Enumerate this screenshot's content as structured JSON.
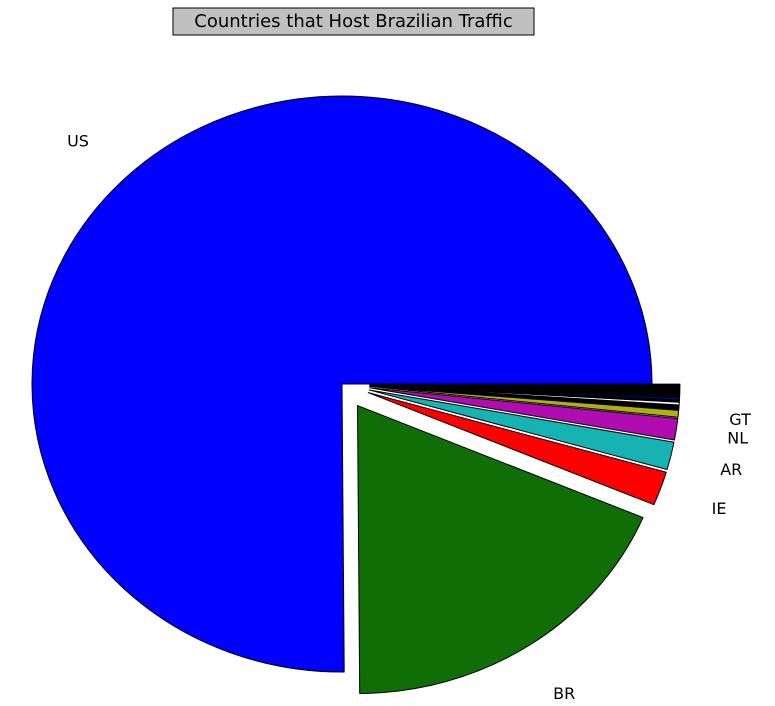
{
  "chart_data": {
    "type": "pie",
    "title": "Countries that Host Brazilian Traffic",
    "slices": [
      {
        "label": "US",
        "value": 75.0,
        "color": "#0000ff",
        "exploded": false
      },
      {
        "label": "BR",
        "value": 18.5,
        "color": "#0f6e05",
        "exploded": true
      },
      {
        "label": "IE",
        "value": 1.9,
        "color": "#ff0000",
        "exploded": true
      },
      {
        "label": "AR",
        "value": 1.55,
        "color": "#17b3b3",
        "exploded": true
      },
      {
        "label": "NL",
        "value": 1.2,
        "color": "#b10cb1",
        "exploded": true
      },
      {
        "label": "GT",
        "value": 0.38,
        "color": "#b0b00c",
        "exploded": true
      },
      {
        "label": "",
        "value": 0.25,
        "color": "#000000",
        "exploded": true
      },
      {
        "label": "",
        "value": 0.15,
        "color": "#ffffff",
        "exploded": true
      },
      {
        "label": "",
        "value": 0.12,
        "color": "#000000",
        "exploded": true
      },
      {
        "label": "",
        "value": 0.1,
        "color": "#0000ff",
        "exploded": true
      },
      {
        "label": "",
        "value": 0.2,
        "color": "#000000",
        "exploded": true
      },
      {
        "label": "",
        "value": 0.15,
        "color": "#000000",
        "exploded": true
      },
      {
        "label": "",
        "value": 0.15,
        "color": "#000000",
        "exploded": true
      },
      {
        "label": "",
        "value": 0.1,
        "color": "#000000",
        "exploded": true
      },
      {
        "label": "",
        "value": 0.1,
        "color": "#000000",
        "exploded": true
      }
    ]
  }
}
